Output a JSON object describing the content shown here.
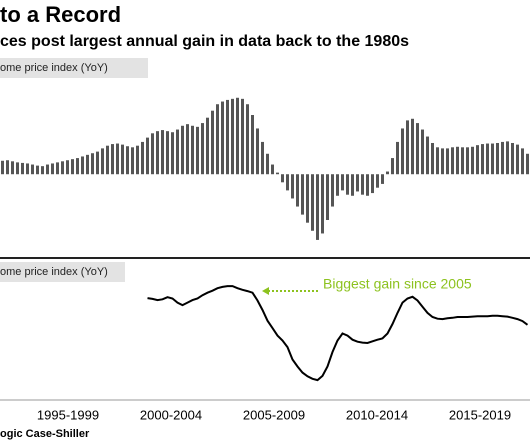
{
  "title": "to a Record",
  "subtitle": "ces post largest annual gain in data back to the 1980s",
  "source": "ogic Case-Shiller",
  "x_labels": [
    "1995-1999",
    "2000-2004",
    "2005-2009",
    "2010-2014",
    "2015-2019"
  ],
  "chart_data": [
    {
      "type": "bar",
      "panel_label": "ome price index (YoY)",
      "color": "#555555",
      "ylim": [
        -15,
        17.5
      ],
      "values": [
        2.5,
        2.6,
        2.4,
        2.2,
        2.1,
        2.0,
        1.8,
        1.6,
        1.5,
        1.8,
        2.0,
        2.2,
        2.4,
        2.6,
        2.8,
        3.0,
        3.3,
        3.6,
        3.9,
        4.2,
        4.8,
        5.3,
        5.6,
        5.7,
        5.5,
        5.2,
        5.0,
        5.3,
        6.0,
        6.8,
        7.6,
        8.0,
        8.2,
        8.0,
        7.8,
        8.3,
        9.0,
        9.3,
        9.0,
        8.8,
        9.5,
        10.5,
        11.8,
        13.0,
        13.5,
        13.8,
        14.0,
        14.2,
        14.0,
        13.0,
        11.0,
        8.5,
        6.0,
        3.8,
        1.8,
        0.3,
        -1.5,
        -3.0,
        -4.5,
        -6.0,
        -7.5,
        -9.0,
        -10.5,
        -12.2,
        -11.0,
        -8.5,
        -6.0,
        -4.0,
        -3.0,
        -3.8,
        -4.0,
        -3.2,
        -3.8,
        -4.0,
        -3.5,
        -2.5,
        -1.8,
        0.5,
        3.0,
        6.0,
        8.5,
        10.0,
        10.3,
        9.5,
        8.3,
        7.0,
        5.8,
        5.0,
        4.8,
        4.8,
        5.0,
        5.1,
        5.0,
        5.0,
        5.1,
        5.4,
        5.6,
        5.7,
        5.7,
        5.8,
        6.0,
        6.1,
        5.8,
        5.5,
        4.8,
        3.8
      ]
    },
    {
      "type": "line",
      "panel_label": "ome price index (YoY)",
      "color": "#000000",
      "ylim": [
        -10,
        15
      ],
      "annotation": "Biggest gain since 2005",
      "annotation_color": "#8dc21f",
      "values": [
        null,
        null,
        null,
        null,
        null,
        null,
        null,
        null,
        null,
        null,
        null,
        null,
        null,
        null,
        null,
        null,
        null,
        null,
        null,
        null,
        null,
        null,
        null,
        null,
        null,
        null,
        null,
        null,
        null,
        11.1,
        10.9,
        10.6,
        10.8,
        11.3,
        11.0,
        10.0,
        9.4,
        10.0,
        10.6,
        11.0,
        11.8,
        12.4,
        12.9,
        13.5,
        13.8,
        14.0,
        14.0,
        13.5,
        13.1,
        12.8,
        12.4,
        10.5,
        8.2,
        5.6,
        3.8,
        2.0,
        0.8,
        -0.8,
        -3.8,
        -5.5,
        -7.0,
        -7.9,
        -8.5,
        -8.8,
        -7.8,
        -5.5,
        -2.0,
        0.8,
        2.5,
        2.0,
        1.0,
        0.5,
        0.3,
        0.2,
        0.6,
        1.0,
        1.3,
        2.5,
        4.8,
        7.5,
        10.0,
        11.0,
        11.4,
        10.5,
        9.0,
        7.5,
        6.5,
        6.1,
        6.0,
        6.2,
        6.3,
        6.5,
        6.5,
        6.5,
        6.6,
        6.7,
        6.7,
        6.7,
        6.8,
        6.8,
        6.7,
        6.6,
        6.3,
        6.0,
        5.5,
        4.6
      ]
    }
  ]
}
